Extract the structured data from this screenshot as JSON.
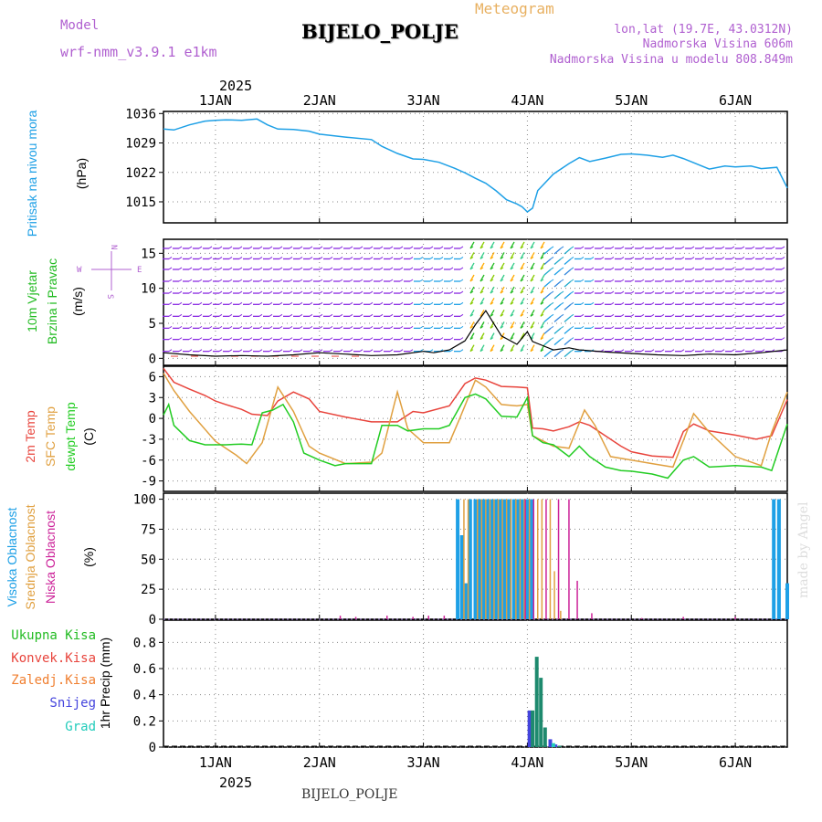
{
  "header": {
    "title": "BIJELO_POLJE",
    "meteogram_label": "Meteogram",
    "model_label": "Model",
    "model_name": "wrf-nmm_v3.9.1 e1km",
    "lonlat": "lon,lat (19.7E, 43.0312N)",
    "altitude": "Nadmorska Visina 606m",
    "model_altitude": "Nadmorska Visina u modelu 808.849m",
    "footer": "BIJELO_POLJE",
    "credit": "made by Angel"
  },
  "colors": {
    "pressure": "#1ea0e6",
    "wind_label": "#22bb22",
    "temp2m": "#e8443c",
    "sfc_temp": "#e0a040",
    "dewpt": "#22cc22",
    "high_cloud": "#1ea0e6",
    "mid_cloud": "#e0a040",
    "low_cloud": "#cc2299",
    "rain_total": "#22bb22",
    "rain_conv": "#e8443c",
    "freezing": "#f07f30",
    "snow": "#4444dd",
    "hail": "#22ccbb",
    "purple": "#b060d0"
  },
  "chart_data": [
    {
      "type": "line",
      "name": "pressure",
      "x_year_label": "2025",
      "x_ticks": [
        "1JAN",
        "2JAN",
        "3JAN",
        "4JAN",
        "5JAN",
        "6JAN"
      ],
      "ylabel": "(hPa)",
      "side_label": "Pritisak na nivou mora",
      "ylim": [
        1010,
        1036.5
      ],
      "yticks": [
        1015,
        1022,
        1029,
        1036
      ],
      "x": [
        0.5,
        0.6,
        0.75,
        0.9,
        1.0,
        1.1,
        1.25,
        1.4,
        1.5,
        1.6,
        1.75,
        1.9,
        2.0,
        2.25,
        2.5,
        2.6,
        2.75,
        2.9,
        3.0,
        3.15,
        3.3,
        3.4,
        3.5,
        3.6,
        3.7,
        3.8,
        3.9,
        3.95,
        4.0,
        4.05,
        4.1,
        4.25,
        4.4,
        4.5,
        4.6,
        4.75,
        4.9,
        5.0,
        5.15,
        5.3,
        5.4,
        5.5,
        5.75,
        5.9,
        6.0,
        6.15,
        6.25,
        6.4,
        6.5
      ],
      "y": [
        1032.3,
        1032.1,
        1033.3,
        1034.2,
        1034.4,
        1034.5,
        1034.4,
        1034.7,
        1033.3,
        1032.3,
        1032.2,
        1031.8,
        1031.1,
        1030.4,
        1029.8,
        1028.2,
        1026.5,
        1025.2,
        1025.1,
        1024.4,
        1023.0,
        1021.9,
        1020.6,
        1019.4,
        1017.6,
        1015.5,
        1014.5,
        1013.8,
        1012.6,
        1013.5,
        1017.7,
        1021.6,
        1024.1,
        1025.5,
        1024.6,
        1025.4,
        1026.3,
        1026.4,
        1026.1,
        1025.6,
        1026.1,
        1025.3,
        1022.8,
        1023.5,
        1023.3,
        1023.5,
        1022.9,
        1023.2,
        1018.3
      ]
    },
    {
      "type": "wind",
      "name": "wind",
      "ylabel": "(m/s)",
      "side_label_1": "10m Vjetar",
      "side_label_2": "Brzina i Pravac",
      "compass": {
        "n": "N",
        "w": "W",
        "e": "E",
        "s": "S"
      },
      "ylim": [
        -1,
        17
      ],
      "yticks": [
        0,
        5,
        10,
        15
      ],
      "x": [
        0.5,
        0.75,
        1.0,
        1.25,
        1.5,
        1.75,
        2.0,
        2.25,
        2.5,
        2.75,
        3.0,
        3.1,
        3.25,
        3.4,
        3.5,
        3.6,
        3.75,
        3.9,
        4.0,
        4.05,
        4.15,
        4.25,
        4.4,
        4.5,
        4.75,
        5.0,
        5.25,
        5.5,
        5.75,
        6.0,
        6.25,
        6.5
      ],
      "speed": [
        0.8,
        0.5,
        0.3,
        0.4,
        0.3,
        0.5,
        0.8,
        0.6,
        0.4,
        0.5,
        1.0,
        0.8,
        1.2,
        2.5,
        4.8,
        6.8,
        3.2,
        2.0,
        3.8,
        2.4,
        1.8,
        1.2,
        1.5,
        1.2,
        0.9,
        0.7,
        0.5,
        0.4,
        0.6,
        0.5,
        0.8,
        1.2
      ]
    },
    {
      "type": "line",
      "name": "temperature",
      "ylabel": "(C)",
      "side_labels": [
        "2m Temp",
        "SFC Temp",
        "dewpt Temp"
      ],
      "ylim": [
        -10.5,
        7.5
      ],
      "yticks": [
        6,
        3,
        0,
        -3,
        -6,
        -9
      ],
      "series": [
        {
          "name": "2m Temp",
          "color_key": "temp2m",
          "x": [
            0.5,
            0.6,
            0.75,
            0.9,
            1.0,
            1.1,
            1.25,
            1.35,
            1.5,
            1.6,
            1.75,
            1.9,
            2.0,
            2.25,
            2.5,
            2.75,
            2.9,
            3.0,
            3.25,
            3.4,
            3.5,
            3.6,
            3.75,
            3.9,
            4.0,
            4.05,
            4.15,
            4.25,
            4.4,
            4.5,
            4.6,
            4.75,
            4.9,
            5.0,
            5.2,
            5.4,
            5.5,
            5.6,
            5.75,
            6.0,
            6.2,
            6.35,
            6.5
          ],
          "y": [
            7.2,
            5.2,
            4.2,
            3.3,
            2.5,
            2.0,
            1.3,
            0.6,
            0.4,
            2.5,
            3.8,
            2.8,
            1.0,
            0.2,
            -0.5,
            -0.5,
            1.0,
            0.8,
            1.8,
            5.0,
            5.8,
            5.5,
            4.6,
            4.5,
            4.4,
            -1.4,
            -1.5,
            -1.8,
            -1.2,
            -0.5,
            -1.0,
            -2.5,
            -4.0,
            -4.8,
            -5.4,
            -5.6,
            -1.9,
            -0.8,
            -1.8,
            -2.4,
            -3.0,
            -2.5,
            2.7
          ]
        },
        {
          "name": "SFC Temp",
          "color_key": "sfc_temp",
          "x": [
            0.5,
            0.6,
            0.75,
            1.0,
            1.2,
            1.3,
            1.45,
            1.6,
            1.75,
            1.9,
            2.0,
            2.25,
            2.5,
            2.6,
            2.75,
            2.85,
            3.0,
            3.25,
            3.35,
            3.5,
            3.6,
            3.75,
            3.9,
            4.0,
            4.05,
            4.25,
            4.4,
            4.55,
            4.65,
            4.8,
            5.0,
            5.2,
            5.4,
            5.5,
            5.6,
            5.75,
            6.0,
            6.25,
            6.35,
            6.5
          ],
          "y": [
            6.5,
            4.0,
            1.0,
            -3.3,
            -5.3,
            -6.5,
            -3.5,
            4.5,
            1.0,
            -4.0,
            -5.0,
            -6.5,
            -6.3,
            -5.0,
            3.8,
            -1.5,
            -3.5,
            -3.5,
            0.0,
            5.5,
            4.5,
            2.0,
            1.8,
            2.0,
            -2.5,
            -4.0,
            -4.3,
            1.2,
            -1.0,
            -5.5,
            -6.0,
            -6.5,
            -7.0,
            -3.2,
            0.7,
            -2.0,
            -5.5,
            -6.8,
            -2.0,
            3.8
          ]
        },
        {
          "name": "dewpt Temp",
          "color_key": "dewpt",
          "x": [
            0.5,
            0.55,
            0.6,
            0.75,
            0.9,
            1.0,
            1.1,
            1.25,
            1.35,
            1.45,
            1.55,
            1.65,
            1.75,
            1.85,
            2.0,
            2.15,
            2.25,
            2.5,
            2.6,
            2.75,
            2.85,
            3.0,
            3.15,
            3.25,
            3.4,
            3.5,
            3.6,
            3.75,
            3.9,
            4.0,
            4.05,
            4.15,
            4.25,
            4.4,
            4.5,
            4.6,
            4.75,
            4.9,
            5.0,
            5.2,
            5.35,
            5.5,
            5.6,
            5.75,
            6.0,
            6.25,
            6.35,
            6.5
          ],
          "y": [
            0.5,
            2.0,
            -1.0,
            -3.2,
            -3.8,
            -3.8,
            -3.8,
            -3.7,
            -3.8,
            0.8,
            1.2,
            2.0,
            -0.5,
            -5.0,
            -6.0,
            -6.8,
            -6.5,
            -6.5,
            -1.0,
            -1.0,
            -1.8,
            -1.5,
            -1.5,
            -1.0,
            3.0,
            3.5,
            2.8,
            0.3,
            0.2,
            3.0,
            -2.5,
            -3.5,
            -3.8,
            -5.5,
            -4.0,
            -5.5,
            -7.0,
            -7.5,
            -7.6,
            -8.0,
            -8.6,
            -6.0,
            -5.5,
            -7.0,
            -6.8,
            -7.0,
            -7.5,
            -0.8
          ]
        }
      ]
    },
    {
      "type": "bar",
      "name": "cloudiness",
      "ylabel": "(%)",
      "side_labels": [
        "Visoka Oblacnost",
        "Srednja Oblacnost",
        "Niska Oblacnost"
      ],
      "ylim": [
        0,
        105
      ],
      "yticks": [
        0,
        25,
        50,
        75,
        100
      ],
      "series": [
        {
          "name": "Visoka Oblacnost",
          "color_key": "high_cloud",
          "x": [
            3.33,
            3.37,
            3.41,
            3.45,
            3.5,
            3.54,
            3.58,
            3.62,
            3.66,
            3.7,
            3.74,
            3.78,
            3.82,
            3.87,
            3.91,
            3.95,
            4.0,
            4.04,
            6.37,
            6.42,
            6.5
          ],
          "values": [
            100,
            70,
            30,
            100,
            100,
            100,
            100,
            100,
            100,
            100,
            100,
            100,
            100,
            100,
            100,
            100,
            100,
            100,
            100,
            100,
            30
          ]
        },
        {
          "name": "Srednja Oblacnost",
          "color_key": "mid_cloud",
          "x": [
            3.39,
            3.43,
            3.52,
            3.56,
            3.6,
            3.64,
            3.68,
            3.72,
            3.76,
            3.8,
            3.84,
            3.89,
            3.93,
            3.97,
            4.02,
            4.1,
            4.14,
            4.22,
            4.26,
            4.32
          ],
          "values": [
            100,
            100,
            100,
            100,
            100,
            100,
            100,
            100,
            100,
            100,
            100,
            100,
            100,
            100,
            100,
            100,
            100,
            100,
            40,
            7
          ]
        },
        {
          "name": "Niska Oblacnost",
          "color_key": "low_cloud",
          "x": [
            2.2,
            2.35,
            2.65,
            2.9,
            3.05,
            3.2,
            3.98,
            4.06,
            4.18,
            4.3,
            4.4,
            4.48,
            4.62,
            5.1,
            5.5,
            6.0
          ],
          "values": [
            3,
            2,
            3,
            2,
            3,
            3,
            100,
            100,
            100,
            100,
            100,
            32,
            5,
            1,
            2,
            2
          ]
        }
      ]
    },
    {
      "type": "bar",
      "name": "precipitation",
      "ylabel": "1hr Precip (mm)",
      "side_labels": [
        "Ukupna Kisa",
        "Konvek.Kisa",
        "Zaledj.Kisa",
        "Snijeg",
        "Grad"
      ],
      "ylim": [
        0,
        0.97
      ],
      "yticks": [
        0,
        0.2,
        0.4,
        0.6,
        0.8
      ],
      "series": [
        {
          "name": "Snijeg",
          "color_key": "snow",
          "x": [
            4.02,
            4.22,
            4.27
          ],
          "values": [
            0.28,
            0.06,
            0.02
          ]
        },
        {
          "name": "Ukupna Kisa",
          "color_key": "rain_total",
          "x": [
            4.05,
            4.09,
            4.13,
            4.17,
            4.31
          ],
          "values": [
            0.28,
            0.69,
            0.53,
            0.15,
            0.01
          ]
        },
        {
          "name": "Grad",
          "color_key": "hail",
          "x": [
            4.25
          ],
          "values": [
            0.03
          ]
        }
      ]
    }
  ]
}
